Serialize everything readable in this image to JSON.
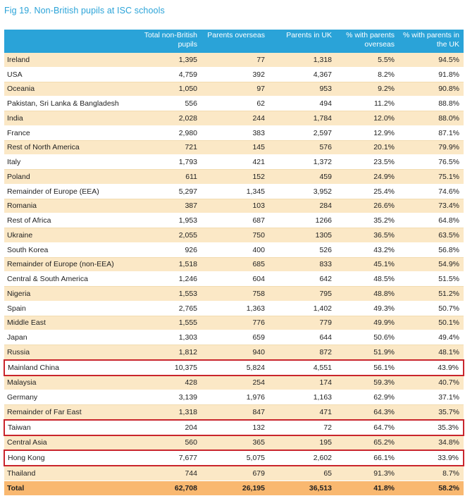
{
  "title": "Fig 19. Non-British pupils at ISC schools",
  "headers": [
    "",
    "Total non-British pupils",
    "Parents overseas",
    "Parents in UK",
    "% with parents overseas",
    "% with parents in the UK"
  ],
  "highlight_color": "#c9252c",
  "rows": [
    [
      "Ireland",
      "1,395",
      "77",
      "1,318",
      "5.5%",
      "94.5%"
    ],
    [
      "USA",
      "4,759",
      "392",
      "4,367",
      "8.2%",
      "91.8%"
    ],
    [
      "Oceania",
      "1,050",
      "97",
      "953",
      "9.2%",
      "90.8%"
    ],
    [
      "Pakistan, Sri Lanka & Bangladesh",
      "556",
      "62",
      "494",
      "11.2%",
      "88.8%"
    ],
    [
      "India",
      "2,028",
      "244",
      "1,784",
      "12.0%",
      "88.0%"
    ],
    [
      "France",
      "2,980",
      "383",
      "2,597",
      "12.9%",
      "87.1%"
    ],
    [
      "Rest of North America",
      "721",
      "145",
      "576",
      "20.1%",
      "79.9%"
    ],
    [
      "Italy",
      "1,793",
      "421",
      "1,372",
      "23.5%",
      "76.5%"
    ],
    [
      "Poland",
      "611",
      "152",
      "459",
      "24.9%",
      "75.1%"
    ],
    [
      "Remainder of Europe (EEA)",
      "5,297",
      "1,345",
      "3,952",
      "25.4%",
      "74.6%"
    ],
    [
      "Romania",
      "387",
      "103",
      "284",
      "26.6%",
      "73.4%"
    ],
    [
      "Rest of Africa",
      "1,953",
      "687",
      "1266",
      "35.2%",
      "64.8%"
    ],
    [
      "Ukraine",
      "2,055",
      "750",
      "1305",
      "36.5%",
      "63.5%"
    ],
    [
      "South Korea",
      "926",
      "400",
      "526",
      "43.2%",
      "56.8%"
    ],
    [
      "Remainder of Europe (non-EEA)",
      "1,518",
      "685",
      "833",
      "45.1%",
      "54.9%"
    ],
    [
      "Central & South America",
      "1,246",
      "604",
      "642",
      "48.5%",
      "51.5%"
    ],
    [
      "Nigeria",
      "1,553",
      "758",
      "795",
      "48.8%",
      "51.2%"
    ],
    [
      "Spain",
      "2,765",
      "1,363",
      "1,402",
      "49.3%",
      "50.7%"
    ],
    [
      "Middle East",
      "1,555",
      "776",
      "779",
      "49.9%",
      "50.1%"
    ],
    [
      "Japan",
      "1,303",
      "659",
      "644",
      "50.6%",
      "49.4%"
    ],
    [
      "Russia",
      "1,812",
      "940",
      "872",
      "51.9%",
      "48.1%"
    ],
    [
      "Mainland China",
      "10,375",
      "5,824",
      "4,551",
      "56.1%",
      "43.9%"
    ],
    [
      "Malaysia",
      "428",
      "254",
      "174",
      "59.3%",
      "40.7%"
    ],
    [
      "Germany",
      "3,139",
      "1,976",
      "1,163",
      "62.9%",
      "37.1%"
    ],
    [
      "Remainder of Far East",
      "1,318",
      "847",
      "471",
      "64.3%",
      "35.7%"
    ],
    [
      "Taiwan",
      "204",
      "132",
      "72",
      "64.7%",
      "35.3%"
    ],
    [
      "Central Asia",
      "560",
      "365",
      "195",
      "65.2%",
      "34.8%"
    ],
    [
      "Hong Kong",
      "7,677",
      "5,075",
      "2,602",
      "66.1%",
      "33.9%"
    ],
    [
      "Thailand",
      "744",
      "679",
      "65",
      "91.3%",
      "8.7%"
    ]
  ],
  "highlighted_rows": [
    "Mainland China",
    "Taiwan",
    "Hong Kong"
  ],
  "total": [
    "Total",
    "62,708",
    "26,195",
    "36,513",
    "41.8%",
    "58.2%"
  ]
}
